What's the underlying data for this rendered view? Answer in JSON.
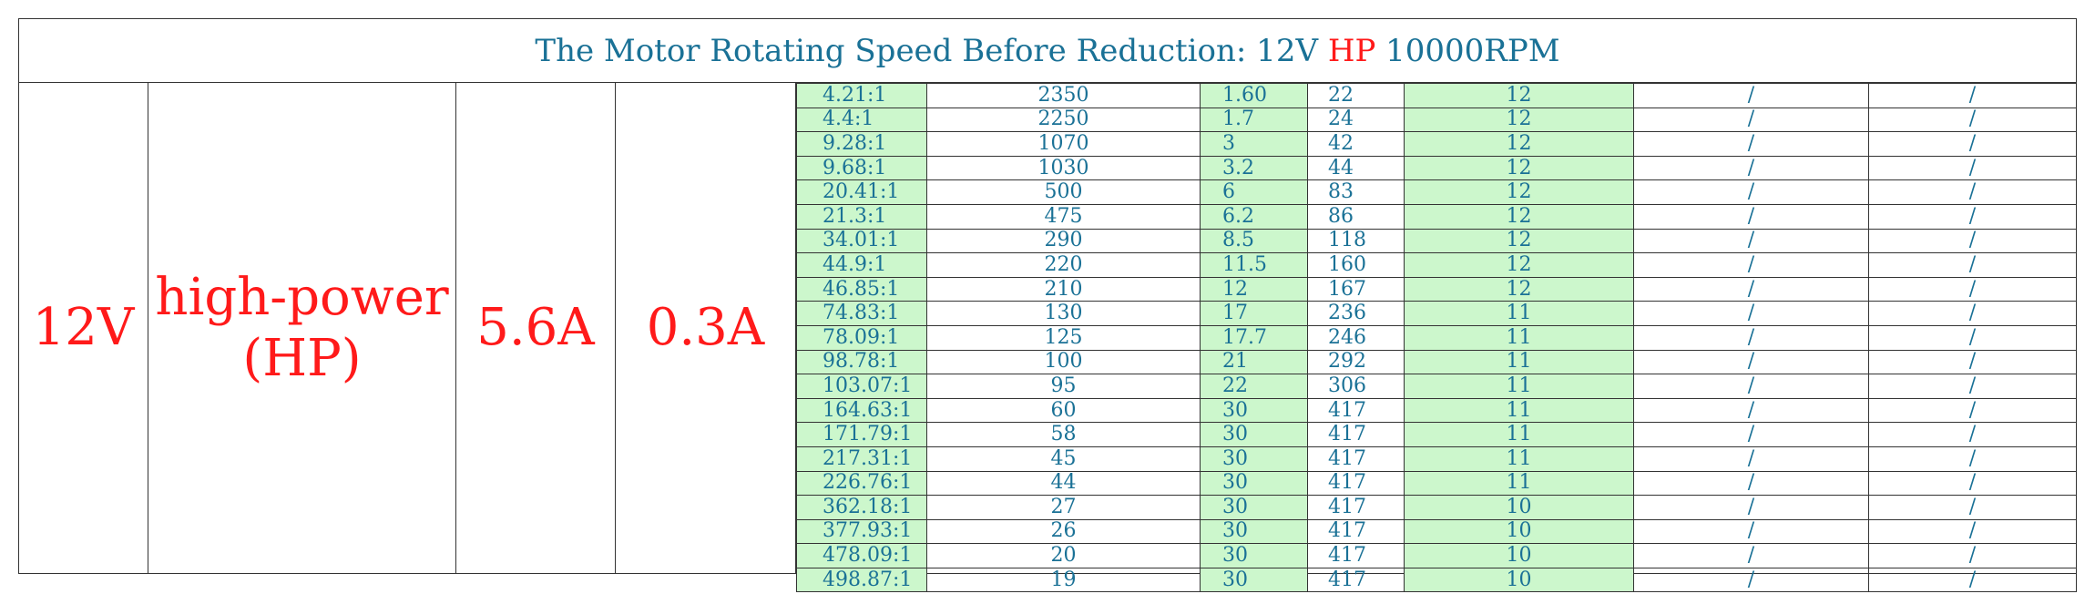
{
  "title": {
    "prefix": "The Motor Rotating Speed Before Reduction: 12V ",
    "highlight": "HP",
    "suffix": " 10000RPM"
  },
  "voltage": "12V",
  "motor_type_line1": "high-power",
  "motor_type_line2": "(HP)",
  "current_a": "5.6A",
  "current_b": "0.3A",
  "rows": [
    [
      "4.21:1",
      "2350",
      "1.60",
      "22",
      "12",
      "/",
      "/"
    ],
    [
      "4.4:1",
      "2250",
      "1.7",
      "24",
      "12",
      "/",
      "/"
    ],
    [
      "9.28:1",
      "1070",
      "3",
      "42",
      "12",
      "/",
      "/"
    ],
    [
      "9.68:1",
      "1030",
      "3.2",
      "44",
      "12",
      "/",
      "/"
    ],
    [
      "20.41:1",
      "500",
      "6",
      "83",
      "12",
      "/",
      "/"
    ],
    [
      "21.3:1",
      "475",
      "6.2",
      "86",
      "12",
      "/",
      "/"
    ],
    [
      "34.01:1",
      "290",
      "8.5",
      "118",
      "12",
      "/",
      "/"
    ],
    [
      "44.9:1",
      "220",
      "11.5",
      "160",
      "12",
      "/",
      "/"
    ],
    [
      "46.85:1",
      "210",
      "12",
      "167",
      "12",
      "/",
      "/"
    ],
    [
      "74.83:1",
      "130",
      "17",
      "236",
      "11",
      "/",
      "/"
    ],
    [
      "78.09:1",
      "125",
      "17.7",
      "246",
      "11",
      "/",
      "/"
    ],
    [
      "98.78:1",
      "100",
      "21",
      "292",
      "11",
      "/",
      "/"
    ],
    [
      "103.07:1",
      "95",
      "22",
      "306",
      "11",
      "/",
      "/"
    ],
    [
      "164.63:1",
      "60",
      "30",
      "417",
      "11",
      "/",
      "/"
    ],
    [
      "171.79:1",
      "58",
      "30",
      "417",
      "11",
      "/",
      "/"
    ],
    [
      "217.31:1",
      "45",
      "30",
      "417",
      "11",
      "/",
      "/"
    ],
    [
      "226.76:1",
      "44",
      "30",
      "417",
      "11",
      "/",
      "/"
    ],
    [
      "362.18:1",
      "27",
      "30",
      "417",
      "10",
      "/",
      "/"
    ],
    [
      "377.93:1",
      "26",
      "30",
      "417",
      "10",
      "/",
      "/"
    ],
    [
      "478.09:1",
      "20",
      "30",
      "417",
      "10",
      "/",
      "/"
    ],
    [
      "498.87:1",
      "19",
      "30",
      "417",
      "10",
      "/",
      "/"
    ]
  ],
  "colors": {
    "text_blue": "#1a7196",
    "accent_red": "#ff1a1a",
    "cell_green": "#ccf7cc"
  }
}
